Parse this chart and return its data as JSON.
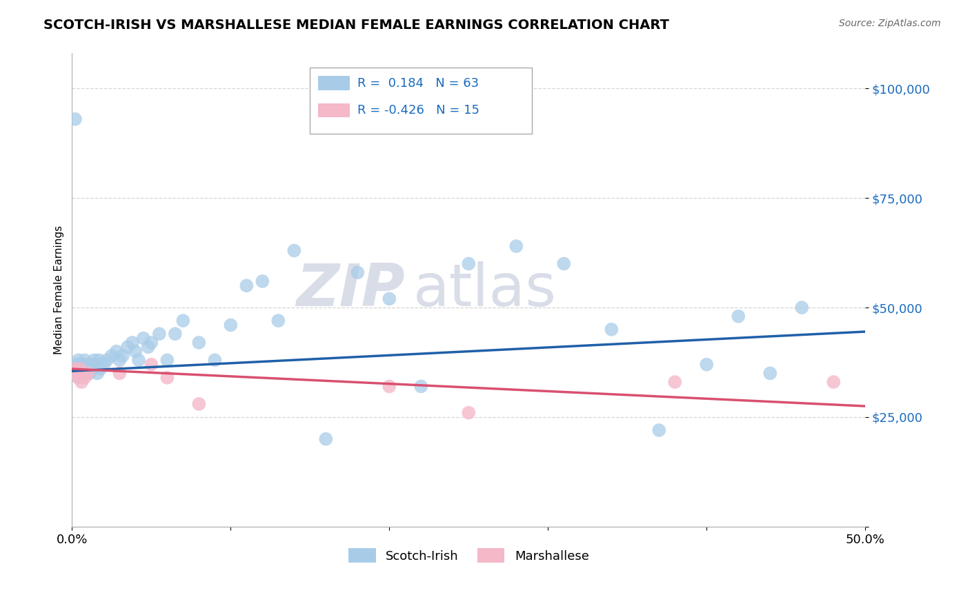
{
  "title": "SCOTCH-IRISH VS MARSHALLESE MEDIAN FEMALE EARNINGS CORRELATION CHART",
  "source": "Source: ZipAtlas.com",
  "ylabel": "Median Female Earnings",
  "xlim": [
    0.0,
    0.5
  ],
  "ylim": [
    0,
    108000
  ],
  "yticks": [
    0,
    25000,
    50000,
    75000,
    100000
  ],
  "ytick_labels": [
    "",
    "$25,000",
    "$50,000",
    "$75,000",
    "$100,000"
  ],
  "xticks": [
    0.0,
    0.1,
    0.2,
    0.3,
    0.4,
    0.5
  ],
  "xtick_labels": [
    "0.0%",
    "",
    "",
    "",
    "",
    "50.0%"
  ],
  "blue_R": 0.184,
  "blue_N": 63,
  "pink_R": -0.426,
  "pink_N": 15,
  "blue_color": "#a8cce8",
  "pink_color": "#f4b8c8",
  "blue_line_color": "#2060a8",
  "pink_line_color": "#d85070",
  "background_color": "#ffffff",
  "grid_color": "#cccccc",
  "title_fontsize": 14,
  "watermark_color": "#d8dde8",
  "blue_scatter_x": [
    0.002,
    0.003,
    0.003,
    0.004,
    0.004,
    0.004,
    0.005,
    0.005,
    0.006,
    0.006,
    0.007,
    0.007,
    0.008,
    0.008,
    0.009,
    0.009,
    0.01,
    0.01,
    0.011,
    0.012,
    0.013,
    0.014,
    0.015,
    0.016,
    0.017,
    0.018,
    0.02,
    0.022,
    0.025,
    0.028,
    0.03,
    0.032,
    0.035,
    0.038,
    0.04,
    0.042,
    0.045,
    0.048,
    0.05,
    0.055,
    0.06,
    0.065,
    0.07,
    0.08,
    0.09,
    0.1,
    0.11,
    0.12,
    0.13,
    0.14,
    0.16,
    0.18,
    0.2,
    0.22,
    0.25,
    0.28,
    0.31,
    0.34,
    0.37,
    0.4,
    0.42,
    0.44,
    0.46
  ],
  "blue_scatter_y": [
    93000,
    37000,
    36000,
    38000,
    35000,
    34000,
    36000,
    37000,
    35000,
    36000,
    37000,
    35000,
    36000,
    38000,
    36000,
    35000,
    37000,
    36000,
    35000,
    37000,
    36000,
    38000,
    37000,
    35000,
    38000,
    36000,
    37000,
    38000,
    39000,
    40000,
    38000,
    39000,
    41000,
    42000,
    40000,
    38000,
    43000,
    41000,
    42000,
    44000,
    38000,
    44000,
    47000,
    42000,
    38000,
    46000,
    55000,
    56000,
    47000,
    63000,
    20000,
    58000,
    52000,
    32000,
    60000,
    64000,
    60000,
    45000,
    22000,
    37000,
    48000,
    35000,
    50000
  ],
  "pink_scatter_x": [
    0.002,
    0.003,
    0.004,
    0.005,
    0.006,
    0.008,
    0.01,
    0.03,
    0.05,
    0.06,
    0.08,
    0.2,
    0.25,
    0.38,
    0.48
  ],
  "pink_scatter_y": [
    36000,
    35000,
    34000,
    36000,
    33000,
    34000,
    35000,
    35000,
    37000,
    34000,
    28000,
    32000,
    26000,
    33000,
    33000
  ],
  "blue_trend_x0": 0.0,
  "blue_trend_y0": 35500,
  "blue_trend_x1": 0.5,
  "blue_trend_y1": 44500,
  "pink_trend_x0": 0.0,
  "pink_trend_y0": 36000,
  "pink_trend_x1": 0.5,
  "pink_trend_y1": 27500
}
